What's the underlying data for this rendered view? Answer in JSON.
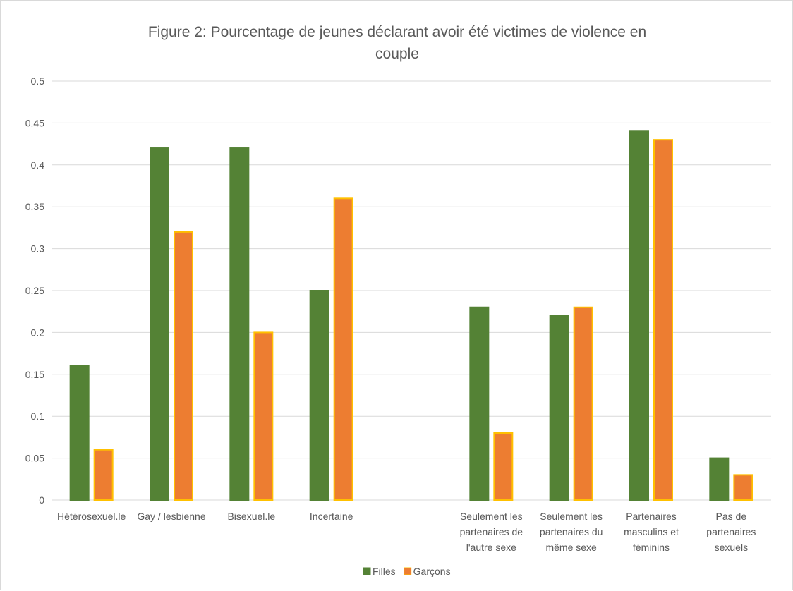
{
  "chart_data": {
    "type": "bar",
    "title_lines": [
      "Figure 2: Pourcentage de jeunes déclarant avoir été victimes de violence en",
      "couple"
    ],
    "categories": [
      [
        "Hétérosexuel.le"
      ],
      [
        "Gay / lesbienne"
      ],
      [
        "Bisexuel.le"
      ],
      [
        "Incertaine"
      ],
      [
        ""
      ],
      [
        "Seulement les",
        "partenaires de",
        "l'autre sexe"
      ],
      [
        "Seulement les",
        "partenaires du",
        "même sexe"
      ],
      [
        "Partenaires",
        "masculins et",
        "féminins"
      ],
      [
        "Pas de",
        "partenaires",
        "sexuels"
      ]
    ],
    "series": [
      {
        "name": "Filles",
        "color": "#548235",
        "stroke": "#548235",
        "values": [
          0.16,
          0.42,
          0.42,
          0.25,
          null,
          0.23,
          0.22,
          0.44,
          0.05
        ]
      },
      {
        "name": "Garçons",
        "color": "#ED7D31",
        "stroke": "#FFC000",
        "values": [
          0.06,
          0.32,
          0.2,
          0.36,
          null,
          0.08,
          0.23,
          0.43,
          0.03
        ]
      }
    ],
    "ylim": [
      0,
      0.5
    ],
    "yticks": [
      "0",
      "0.05",
      "0.1",
      "0.15",
      "0.2",
      "0.25",
      "0.3",
      "0.35",
      "0.4",
      "0.45",
      "0.5"
    ],
    "grid": true,
    "legend_position": "bottom",
    "gridline_color": "#d9d9d9",
    "text_color": "#595959"
  }
}
